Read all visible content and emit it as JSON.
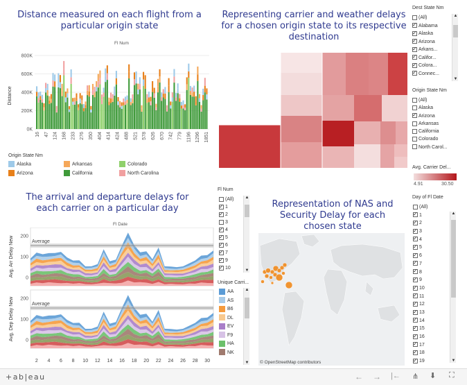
{
  "titles": {
    "distance": "Distance measured on each flight from a particular origin state",
    "treemap": "Representing carrier and weather delays for a chosen origin state to its respective destination",
    "delays": "The arrival and departure delays for each carrier on a particular day",
    "map": "Representation of NAS and Security Delay for each chosen state"
  },
  "distance_chart": {
    "axis_title_top": "Fl Num",
    "y_axis_title": "Distance",
    "y_ticks": [
      "800K",
      "600K",
      "400K",
      "200K",
      "0K"
    ],
    "x_ticks": [
      "16",
      "47",
      "124",
      "168",
      "233",
      "276",
      "350",
      "404",
      "414",
      "424",
      "488",
      "521",
      "578",
      "626",
      "670",
      "742",
      "779",
      "1196",
      "1296",
      "1851"
    ],
    "legend_title": "Origin State Nm",
    "legend": [
      {
        "label": "Alaska",
        "color": "#9ecae9"
      },
      {
        "label": "Arkansas",
        "color": "#f5a85a"
      },
      {
        "label": "Colorado",
        "color": "#8fd06b"
      },
      {
        "label": "Arizona",
        "color": "#e8801a"
      },
      {
        "label": "California",
        "color": "#3f9a3a"
      },
      {
        "label": "North Carolina",
        "color": "#f1a0a0"
      }
    ]
  },
  "treemap_legend": {
    "title": "Avg. Carrier Del...",
    "min": "4.91",
    "max": "30.50"
  },
  "delay_chart": {
    "top_title": "Fl Date",
    "arr_axis": "Avg. Arr Delay New",
    "dep_axis": "Avg. Dep Delay New",
    "avg_label": "Average",
    "y_ticks": [
      "200",
      "100",
      "0"
    ],
    "x_ticks": [
      "2",
      "4",
      "6",
      "8",
      "10",
      "12",
      "14",
      "16",
      "18",
      "20",
      "22",
      "24",
      "26",
      "28",
      "30"
    ]
  },
  "map": {
    "attribution": "© OpenStreetMap contributors"
  },
  "filters": {
    "dest_state": {
      "title": "Dest State Nm",
      "items": [
        {
          "label": "(All)",
          "checked": false
        },
        {
          "label": "Alabama",
          "checked": true
        },
        {
          "label": "Alaska",
          "checked": true
        },
        {
          "label": "Arizona",
          "checked": true
        },
        {
          "label": "Arkans...",
          "checked": true
        },
        {
          "label": "Califor...",
          "checked": true
        },
        {
          "label": "Colora...",
          "checked": true
        },
        {
          "label": "Connec...",
          "checked": true
        }
      ]
    },
    "origin_state": {
      "title": "Origin State Nm",
      "items": [
        {
          "label": "(All)",
          "checked": false
        },
        {
          "label": "Alaska",
          "checked": false
        },
        {
          "label": "Arizona",
          "checked": true
        },
        {
          "label": "Arkansas",
          "checked": false
        },
        {
          "label": "California",
          "checked": false
        },
        {
          "label": "Colorado",
          "checked": false
        },
        {
          "label": "North Carol...",
          "checked": false
        }
      ]
    },
    "fl_num": {
      "title": "Fl Num",
      "items": [
        {
          "label": "(All)",
          "checked": false
        },
        {
          "label": "1",
          "checked": true
        },
        {
          "label": "2",
          "checked": true
        },
        {
          "label": "3",
          "checked": false
        },
        {
          "label": "4",
          "checked": true
        },
        {
          "label": "5",
          "checked": true
        },
        {
          "label": "6",
          "checked": true
        },
        {
          "label": "7",
          "checked": true
        },
        {
          "label": "9",
          "checked": true
        },
        {
          "label": "10",
          "checked": true
        }
      ]
    },
    "carrier": {
      "title": "Unique Carri...",
      "items": [
        {
          "label": "AA",
          "color": "#5b9bd5"
        },
        {
          "label": "AS",
          "color": "#a9cbe8"
        },
        {
          "label": "B6",
          "color": "#f59a3c"
        },
        {
          "label": "DL",
          "color": "#f8c98f"
        },
        {
          "label": "EV",
          "color": "#a97ec9"
        },
        {
          "label": "F9",
          "color": "#d7c2e6"
        },
        {
          "label": "HA",
          "color": "#6cc06a"
        },
        {
          "label": "NK",
          "color": "#a07a6e"
        }
      ]
    },
    "day": {
      "title": "Day of Fl Date",
      "items": [
        "(All)",
        "1",
        "2",
        "3",
        "4",
        "5",
        "6",
        "7",
        "8",
        "9",
        "10",
        "11",
        "12",
        "13",
        "14",
        "15",
        "16",
        "17",
        "18",
        "19"
      ]
    }
  },
  "footer": {
    "brand": "+ab|eau"
  }
}
